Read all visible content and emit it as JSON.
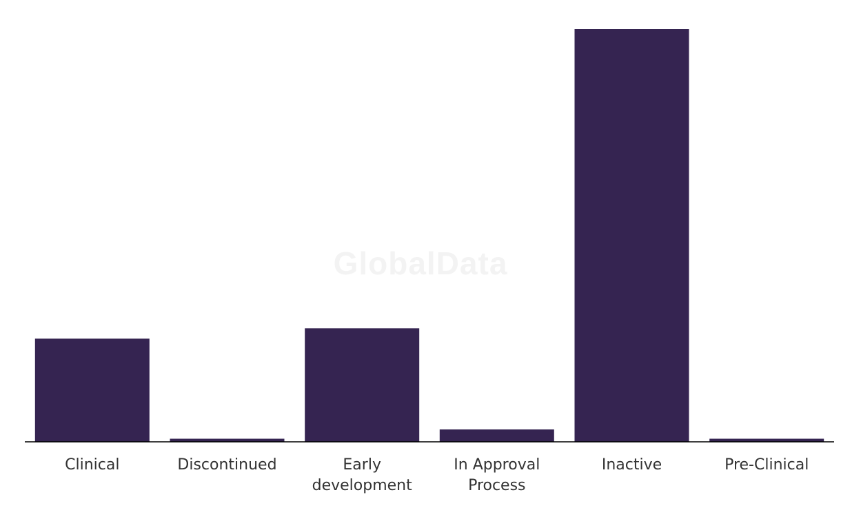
{
  "watermark": "GlobalData",
  "colors": {
    "bar": "#352451",
    "axis": "#000000",
    "text": "#333333"
  },
  "chart_data": {
    "type": "bar",
    "categories": [
      [
        "Clinical"
      ],
      [
        "Discontinued"
      ],
      [
        "Early",
        "development"
      ],
      [
        "In Approval",
        "Process"
      ],
      [
        "Inactive"
      ],
      [
        "Pre-Clinical"
      ]
    ],
    "values": [
      10,
      0.3,
      11,
      1.2,
      40,
      0.3
    ],
    "title": "",
    "xlabel": "",
    "ylabel": "",
    "ylim": [
      0,
      40
    ],
    "grid": false,
    "legend": "none"
  }
}
